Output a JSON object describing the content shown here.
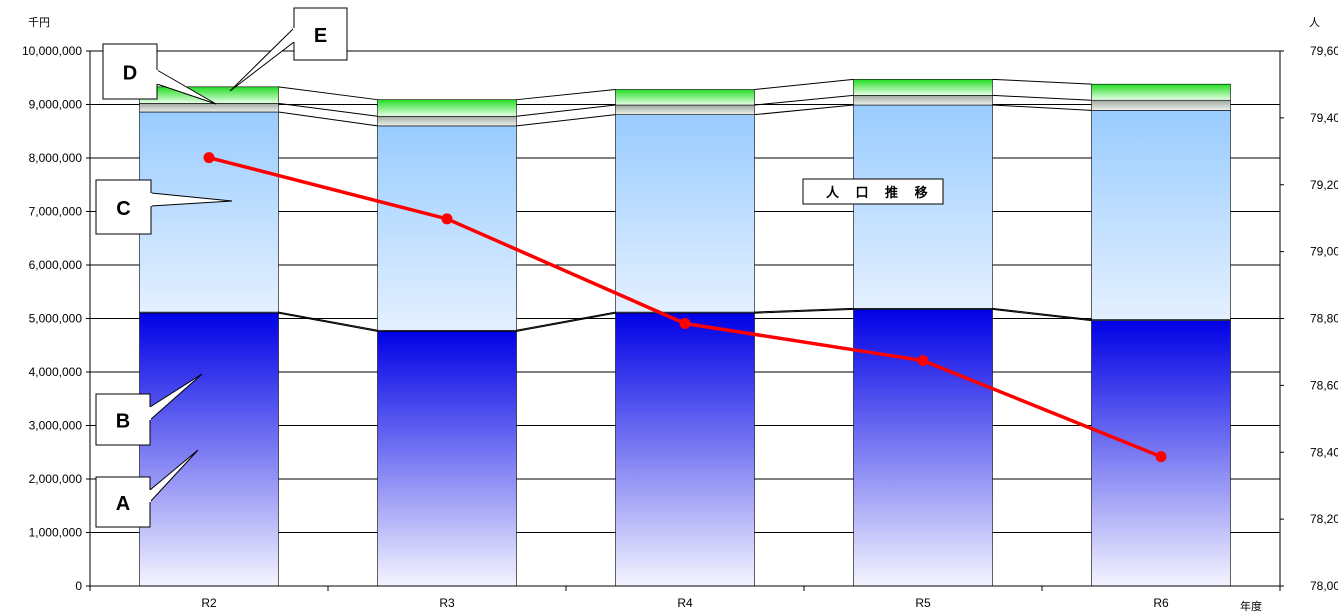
{
  "chart_data": {
    "type": "bar",
    "left_unit": "千円",
    "right_unit": "人",
    "x_unit": "年度",
    "categories": [
      "R2",
      "R3",
      "R4",
      "R5",
      "R6"
    ],
    "stacked_series": [
      {
        "name": "A",
        "values": [
          5100000,
          4760000,
          5100000,
          5170000,
          4960000
        ],
        "color_top": "#0000e6",
        "color_bottom": "#f4f4ff"
      },
      {
        "name": "B",
        "values": [
          20000,
          20000,
          20000,
          20000,
          20000
        ],
        "color": "#6a7aa0"
      },
      {
        "name": "C",
        "values": [
          3740000,
          3820000,
          3690000,
          3800000,
          3910000
        ],
        "color_top": "#99ccff",
        "color_bottom": "#e4f0ff"
      },
      {
        "name": "D",
        "values": [
          160000,
          180000,
          180000,
          180000,
          190000
        ],
        "color_top": "#a0a8a0",
        "color_bottom": "#eef2ee"
      },
      {
        "name": "E",
        "values": [
          310000,
          310000,
          290000,
          300000,
          300000
        ],
        "color_top": "#22dd22",
        "color_bottom": "#e8ffe8"
      }
    ],
    "line_series": {
      "name": "人口推移",
      "values": [
        79281,
        79098,
        78785,
        78674,
        78387
      ],
      "color": "#ff0000"
    },
    "y_left": {
      "min": 0,
      "max": 10000000,
      "step": 1000000,
      "tick_labels": [
        "0",
        "1,000,000",
        "2,000,000",
        "3,000,000",
        "4,000,000",
        "5,000,000",
        "6,000,000",
        "7,000,000",
        "8,000,000",
        "9,000,000",
        "10,000,000"
      ]
    },
    "y_right": {
      "min": 78000,
      "max": 79600,
      "step": 200,
      "tick_labels": [
        "78,000",
        "78,200",
        "78,400",
        "78,600",
        "78,800",
        "79,000",
        "79,200",
        "79,400",
        "79,600"
      ]
    },
    "grid": true,
    "line_legend_label": "人 口 推 移",
    "callouts": [
      "A",
      "B",
      "C",
      "D",
      "E"
    ]
  }
}
